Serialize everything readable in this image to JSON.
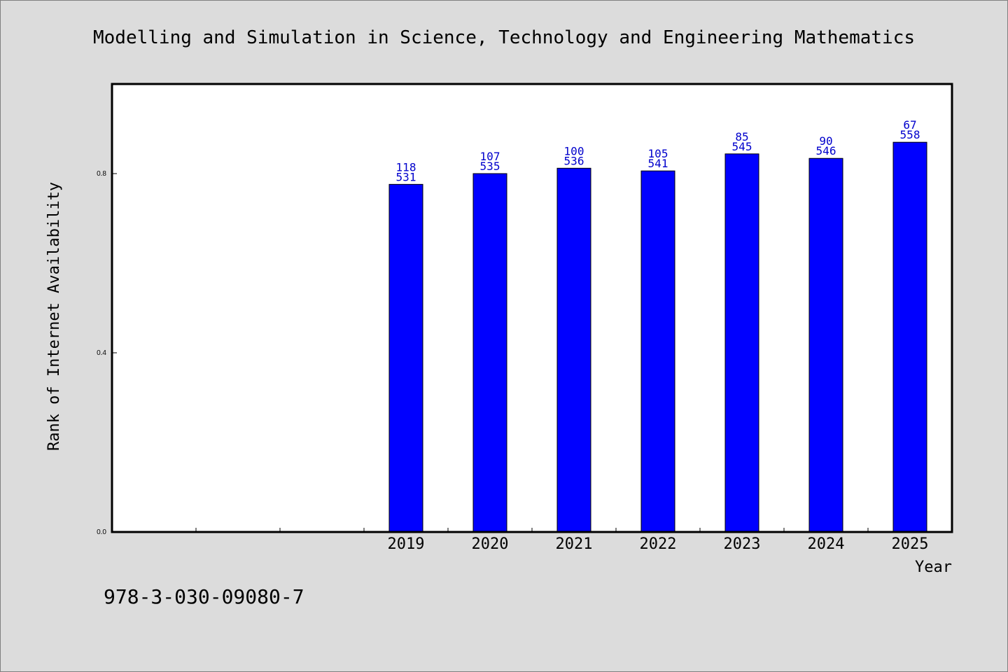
{
  "chart_data": {
    "type": "bar",
    "title": "Modelling and Simulation in Science, Technology and Engineering Mathematics",
    "xlabel": "Year",
    "ylabel": "Rank of Internet Availability",
    "categories": [
      "",
      "",
      "",
      "2019",
      "2020",
      "2021",
      "2022",
      "2023",
      "2024",
      "2025"
    ],
    "values": [
      null,
      null,
      null,
      0.776,
      0.8,
      0.812,
      0.806,
      0.844,
      0.834,
      0.87
    ],
    "bar_labels": [
      null,
      null,
      null,
      [
        "118",
        "531"
      ],
      [
        "107",
        "535"
      ],
      [
        "100",
        "536"
      ],
      [
        "105",
        "541"
      ],
      [
        "85",
        "545"
      ],
      [
        "90",
        "546"
      ],
      [
        "67",
        "558"
      ]
    ],
    "yticks": [
      0.0,
      0.4,
      0.8
    ],
    "ytick_labels": [
      "0.0",
      "0.4",
      "0.8"
    ],
    "ylim": [
      0,
      1.0
    ],
    "grid": false,
    "colors": {
      "bar": "#0000ff",
      "bar_edge": "#000000",
      "bar_label": "#0000cc",
      "plot_bg": "#ffffff",
      "page_bg": "#dcdcdc"
    }
  },
  "footer": {
    "isbn": "978-3-030-09080-7"
  }
}
